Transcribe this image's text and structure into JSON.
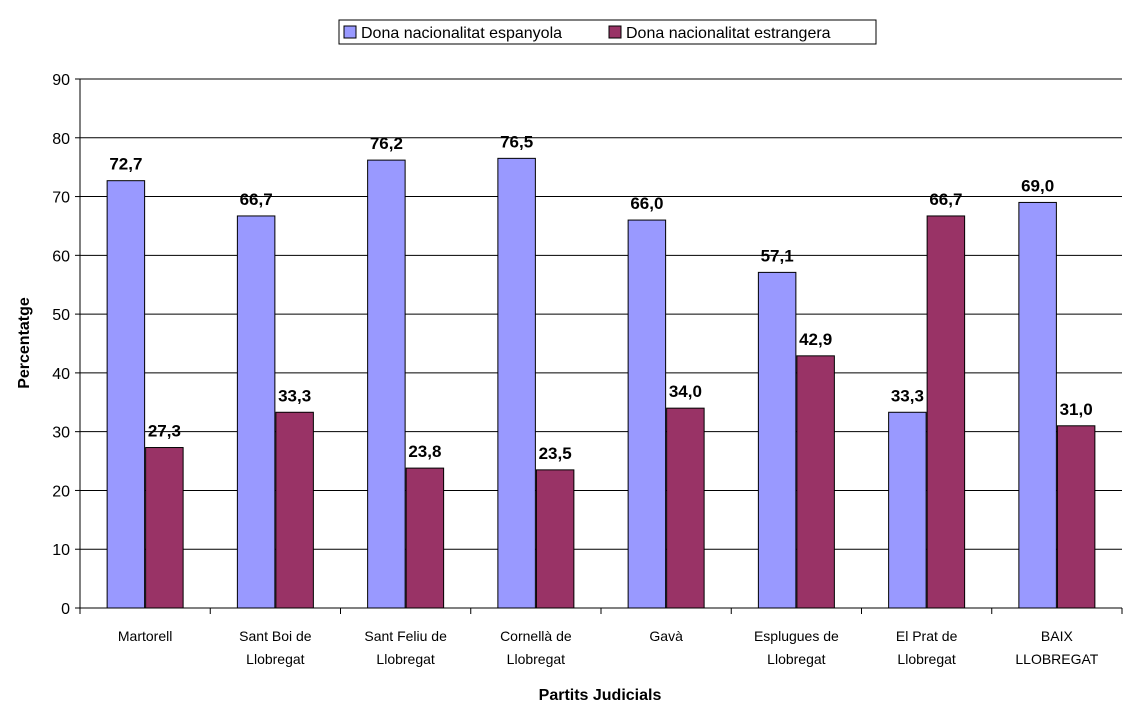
{
  "chart_data": {
    "type": "bar",
    "title": "",
    "xlabel": "Partits Judicials",
    "ylabel": "Percentatge",
    "ylim": [
      0,
      90
    ],
    "yticks": [
      0,
      10,
      20,
      30,
      40,
      50,
      60,
      70,
      80,
      90
    ],
    "grid": true,
    "legend_position": "top",
    "categories": [
      [
        "Martorell"
      ],
      [
        "Sant Boi de",
        "Llobregat"
      ],
      [
        "Sant Feliu de",
        "Llobregat"
      ],
      [
        "Cornellà de",
        "Llobregat"
      ],
      [
        "Gavà"
      ],
      [
        "Esplugues de",
        "Llobregat"
      ],
      [
        "El Prat de",
        "Llobregat"
      ],
      [
        "BAIX",
        "LLOBREGAT"
      ]
    ],
    "series": [
      {
        "name": "Dona nacionalitat espanyola",
        "color": "#9999FF",
        "values": [
          72.7,
          66.7,
          76.2,
          76.5,
          66.0,
          57.1,
          33.3,
          69.0
        ],
        "labels": [
          "72,7",
          "66,7",
          "76,2",
          "76,5",
          "66,0",
          "57,1",
          "33,3",
          "69,0"
        ]
      },
      {
        "name": "Dona nacionalitat estrangera",
        "color": "#993366",
        "values": [
          27.3,
          33.3,
          23.8,
          23.5,
          34.0,
          42.9,
          66.7,
          31.0
        ],
        "labels": [
          "27,3",
          "33,3",
          "23,8",
          "23,5",
          "34,0",
          "42,9",
          "66,7",
          "31,0"
        ]
      }
    ]
  }
}
